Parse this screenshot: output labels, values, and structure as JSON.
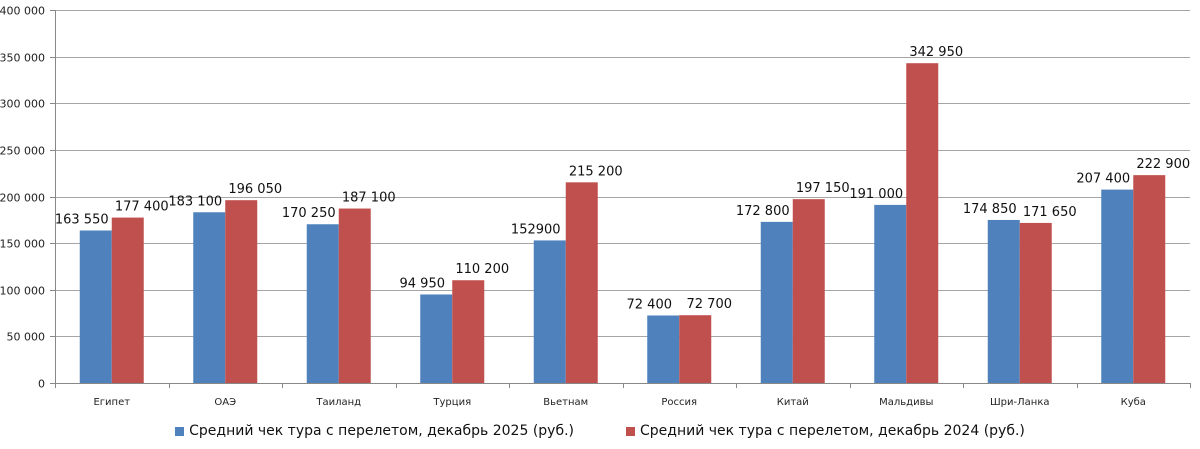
{
  "chart_data": {
    "type": "bar",
    "title": "",
    "xlabel": "",
    "ylabel": "",
    "ylim": [
      0,
      400000
    ],
    "yticks": [
      0,
      50000,
      100000,
      150000,
      200000,
      250000,
      300000,
      350000,
      400000
    ],
    "ytick_labels": [
      "0",
      "50 000",
      "100 000",
      "150 000",
      "200 000",
      "250 000",
      "300 000",
      "350 000",
      "400 000"
    ],
    "grid": true,
    "legend_position": "bottom",
    "categories": [
      "Египет",
      "ОАЭ",
      "Таиланд",
      "Турция",
      "Вьетнам",
      "Россия",
      "Китай",
      "Мальдивы",
      "Шри-Ланка",
      "Куба"
    ],
    "series": [
      {
        "name": "Средний чек тура с перелетом, декабрь 2025 (руб.)",
        "color": "#4f81bd",
        "values": [
          163550,
          183100,
          170250,
          94950,
          152900,
          72400,
          172800,
          191000,
          174850,
          207400
        ],
        "labels": [
          "163 550",
          "183 100",
          "170 250",
          "94 950",
          "152900",
          "72 400",
          "172 800",
          "191 000",
          "174 850",
          "207 400"
        ]
      },
      {
        "name": "Средний чек тура с перелетом, декабрь 2024 (руб.)",
        "color": "#c0504d",
        "values": [
          177400,
          196050,
          187100,
          110200,
          215200,
          72700,
          197150,
          342950,
          171650,
          222900
        ],
        "labels": [
          "177 400",
          "196 050",
          "187 100",
          "110 200",
          "215 200",
          "72 700",
          "197 150",
          "342 950",
          "171 650",
          "222 900"
        ]
      }
    ]
  }
}
